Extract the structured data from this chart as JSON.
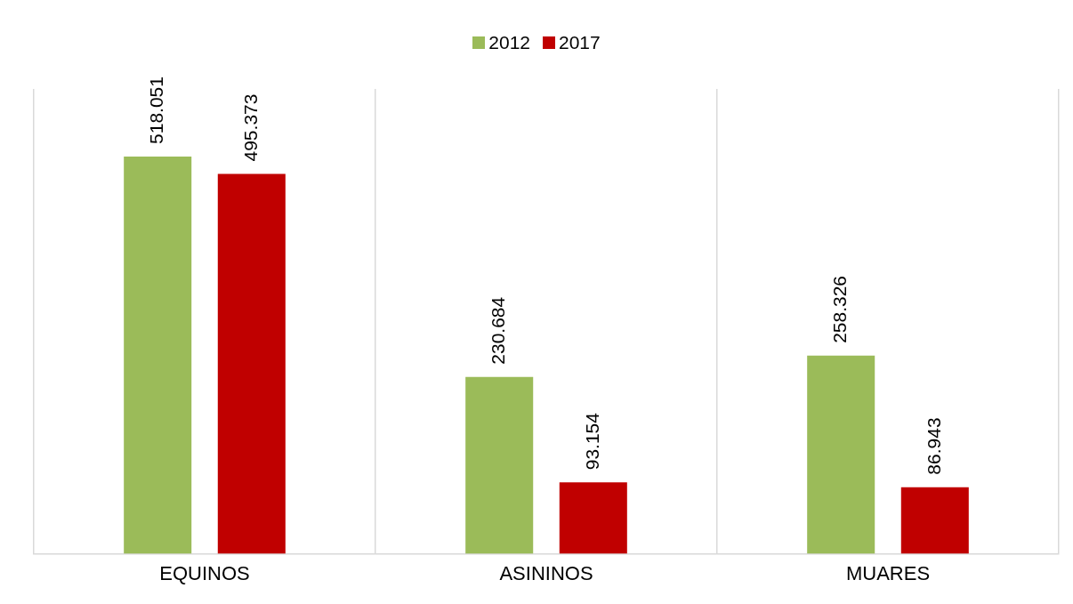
{
  "chart_data": {
    "type": "bar",
    "categories": [
      "EQUINOS",
      "ASININOS",
      "MUARES"
    ],
    "series": [
      {
        "name": "2012",
        "color": "#9bbb59",
        "values": [
          518051,
          230684,
          258326
        ],
        "value_labels": [
          "518.051",
          "230.684",
          "258.326"
        ]
      },
      {
        "name": "2017",
        "color": "#c00000",
        "values": [
          495373,
          93154,
          86943
        ],
        "value_labels": [
          "495.373",
          "93.154",
          "86.943"
        ]
      }
    ],
    "legend": "top",
    "grid": "x"
  }
}
